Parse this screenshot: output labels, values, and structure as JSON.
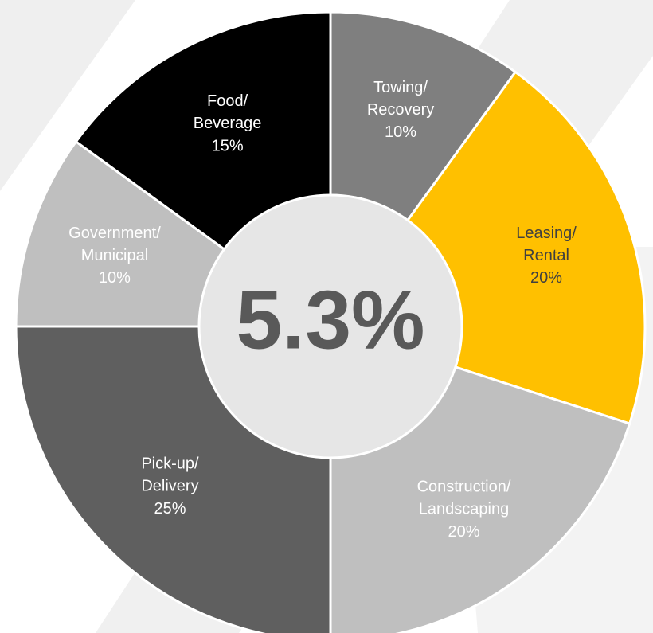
{
  "chart_data": {
    "type": "donut",
    "center_label": "5.3%",
    "categories": [
      "Towing/Recovery",
      "Leasing/Rental",
      "Construction/Landscaping",
      "Pick-up/Delivery",
      "Government/Municipal",
      "Food/Beverage"
    ],
    "values": [
      10,
      20,
      20,
      25,
      10,
      15
    ],
    "value_labels": [
      "10%",
      "20%",
      "20%",
      "25%",
      "10%",
      "15%"
    ],
    "colors": [
      "#7f7f7f",
      "#ffc000",
      "#bfbfbf",
      "#5f5f5f",
      "#bfbfbf",
      "#000000"
    ],
    "label_colors": [
      "#ffffff",
      "#404040",
      "#ffffff",
      "#ffffff",
      "#ffffff",
      "#ffffff"
    ]
  }
}
